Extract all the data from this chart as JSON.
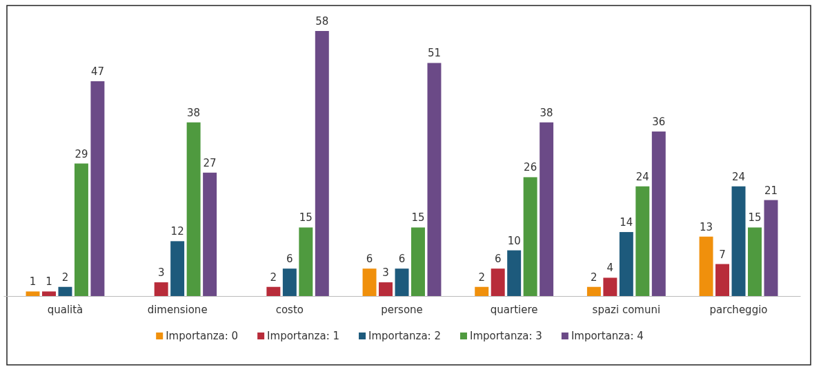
{
  "chart_data": {
    "type": "bar",
    "categories": [
      "qualità",
      "dimensione",
      "costo",
      "persone",
      "quartiere",
      "spazi comuni",
      "parcheggio"
    ],
    "series": [
      {
        "name": "Importanza: 0",
        "color": "#f0900c",
        "values": [
          1,
          null,
          null,
          6,
          2,
          2,
          13
        ]
      },
      {
        "name": "Importanza: 1",
        "color": "#b82c3a",
        "values": [
          1,
          3,
          2,
          3,
          6,
          4,
          7
        ]
      },
      {
        "name": "Importanza: 2",
        "color": "#1d5a7c",
        "values": [
          2,
          12,
          6,
          6,
          10,
          14,
          24
        ]
      },
      {
        "name": "Importanza: 3",
        "color": "#4f9a3f",
        "values": [
          29,
          38,
          15,
          15,
          26,
          24,
          15
        ]
      },
      {
        "name": "Importanza: 4",
        "color": "#6b4a87",
        "values": [
          47,
          27,
          58,
          51,
          38,
          36,
          21
        ]
      }
    ],
    "data_labels": true,
    "legend": "bottom"
  }
}
